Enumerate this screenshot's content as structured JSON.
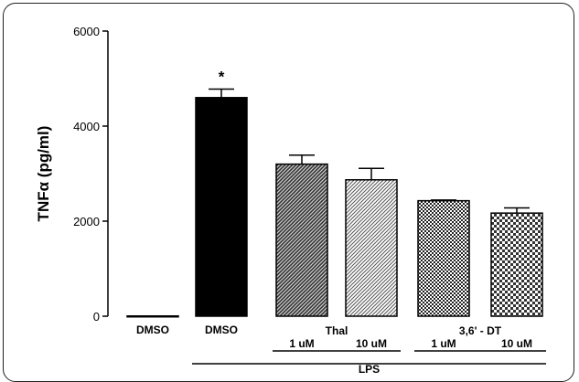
{
  "chart_data": {
    "type": "bar",
    "ylabel": "TNFα (pg/ml)",
    "ylim": [
      0,
      6000
    ],
    "yticks": [
      0,
      2000,
      4000,
      6000
    ],
    "grid": false,
    "categories": [
      "DMSO",
      "DMSO",
      "Thal 1 uM",
      "Thal 10 uM",
      "3,6' - DT 1 uM",
      "3,6' - DT 10 uM"
    ],
    "bar_labels": [
      "DMSO",
      "DMSO",
      "1 uM",
      "10 uM",
      "1 uM",
      "10 uM"
    ],
    "values": [
      5,
      4600,
      3200,
      2870,
      2430,
      2170
    ],
    "errors": [
      0,
      180,
      190,
      240,
      15,
      110
    ],
    "significance": [
      "",
      "*",
      "",
      "",
      "",
      ""
    ],
    "fills": [
      "#000000",
      "#000000",
      "hatch-dark",
      "hatch-light",
      "check-dark",
      "check-light"
    ],
    "groups": [
      {
        "label": "Thal",
        "bars": [
          2,
          3
        ]
      },
      {
        "label": "3,6' - DT",
        "bars": [
          4,
          5
        ]
      }
    ],
    "super_group": {
      "label": "LPS",
      "bars": [
        1,
        5
      ]
    }
  }
}
